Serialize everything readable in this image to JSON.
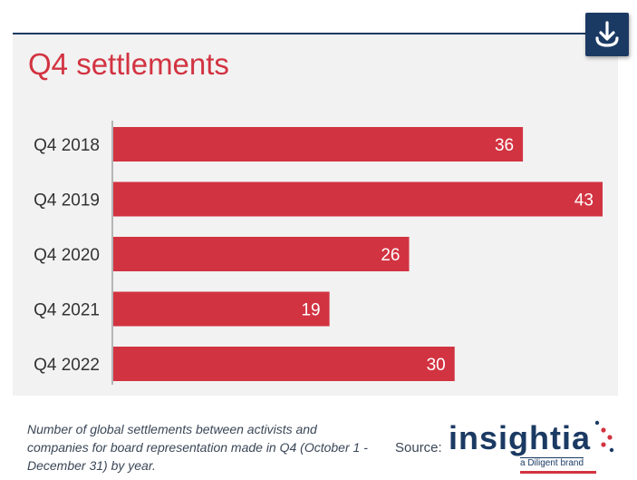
{
  "chart_data": {
    "type": "bar",
    "orientation": "horizontal",
    "title": "Q4 settlements",
    "categories": [
      "Q4 2018",
      "Q4 2019",
      "Q4 2020",
      "Q4 2021",
      "Q4 2022"
    ],
    "values": [
      36,
      43,
      26,
      19,
      30
    ],
    "data_labels": [
      "36",
      "43",
      "26",
      "19",
      "30"
    ],
    "xlim": [
      0,
      43
    ],
    "grid": false,
    "legend": "none",
    "bar_color": "#d23341",
    "label_color": "#ffffff"
  },
  "caption": "Number of global settlements between activists and companies for board representation made in Q4 (October 1 - December 31) by year.",
  "source": {
    "label": "Source:",
    "logo_text": "insightia",
    "logo_tagline": "a Diligent brand"
  },
  "colors": {
    "accent": "#d23341",
    "brand": "#1b3a63",
    "panel": "#f2f2f2"
  },
  "icons": {
    "download": "download-icon"
  }
}
